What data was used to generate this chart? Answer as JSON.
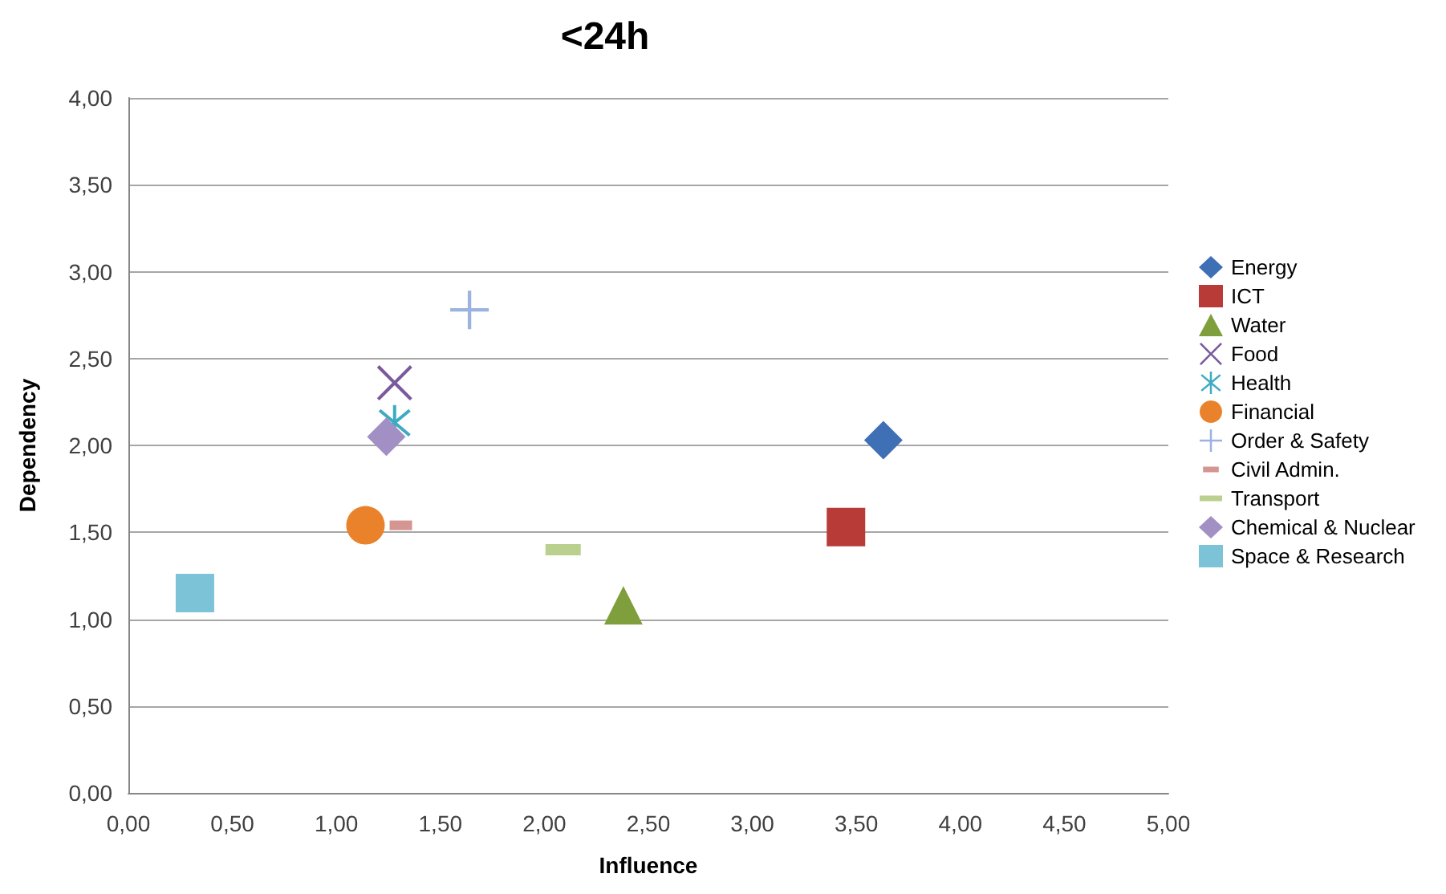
{
  "chart_data": {
    "type": "scatter",
    "title": "<24h",
    "xlabel": "Influence",
    "ylabel": "Dependency",
    "xlim": [
      0,
      5
    ],
    "xticks": [
      {
        "value": 0,
        "label": "0,00"
      },
      {
        "value": 0.5,
        "label": "0,50"
      },
      {
        "value": 1,
        "label": "1,00"
      },
      {
        "value": 1.5,
        "label": "1,50"
      },
      {
        "value": 2,
        "label": "2,00"
      },
      {
        "value": 2.5,
        "label": "2,50"
      },
      {
        "value": 3,
        "label": "3,00"
      },
      {
        "value": 3.5,
        "label": "3,50"
      },
      {
        "value": 4,
        "label": "4,00"
      },
      {
        "value": 4.5,
        "label": "4,50"
      },
      {
        "value": 5,
        "label": "5,00"
      }
    ],
    "ylim": [
      0,
      4
    ],
    "yticks": [
      {
        "value": 0,
        "label": "0,00"
      },
      {
        "value": 0.5,
        "label": "0,50"
      },
      {
        "value": 1,
        "label": "1,00"
      },
      {
        "value": 1.5,
        "label": "1,50"
      },
      {
        "value": 2,
        "label": "2,00"
      },
      {
        "value": 2.5,
        "label": "2,50"
      },
      {
        "value": 3,
        "label": "3,00"
      },
      {
        "value": 3.5,
        "label": "3,50"
      },
      {
        "value": 4,
        "label": "4,00"
      }
    ],
    "grid": "y",
    "legend": "right",
    "series": [
      {
        "name": "Energy",
        "color": "#3f6fb5",
        "marker": "diamond",
        "x": [
          3.63
        ],
        "values": [
          2.03
        ]
      },
      {
        "name": "ICT",
        "color": "#b83b38",
        "marker": "square",
        "x": [
          3.45
        ],
        "values": [
          1.53
        ]
      },
      {
        "name": "Water",
        "color": "#7e9f3c",
        "marker": "triangle",
        "x": [
          2.38
        ],
        "values": [
          1.08
        ]
      },
      {
        "name": "Food",
        "color": "#7a5a9c",
        "marker": "cross",
        "x": [
          1.28
        ],
        "values": [
          2.36
        ]
      },
      {
        "name": "Health",
        "color": "#3fabc2",
        "x": [
          1.28
        ],
        "values": [
          2.13
        ]
      },
      {
        "name": "Financial",
        "color": "#e9822a",
        "marker": "circle",
        "x": [
          1.14
        ],
        "values": [
          1.54
        ]
      },
      {
        "name": "Order & Safety",
        "color": "#9bb3dd",
        "x": [
          1.64
        ],
        "values": [
          2.78
        ]
      },
      {
        "name": "Civil Admin.",
        "color": "#d59592",
        "x": [
          1.31
        ],
        "values": [
          1.54
        ]
      },
      {
        "name": "Transport",
        "color": "#b9d08f",
        "x": [
          2.09
        ],
        "values": [
          1.4
        ]
      },
      {
        "name": "Chemical & Nuclear",
        "color": "#a28fc4",
        "marker": "diamond",
        "x": [
          1.24
        ],
        "values": [
          2.05
        ]
      },
      {
        "name": "Space & Research",
        "color": "#7cc3d8",
        "marker": "square",
        "x": [
          0.32
        ],
        "values": [
          1.15
        ]
      }
    ]
  }
}
